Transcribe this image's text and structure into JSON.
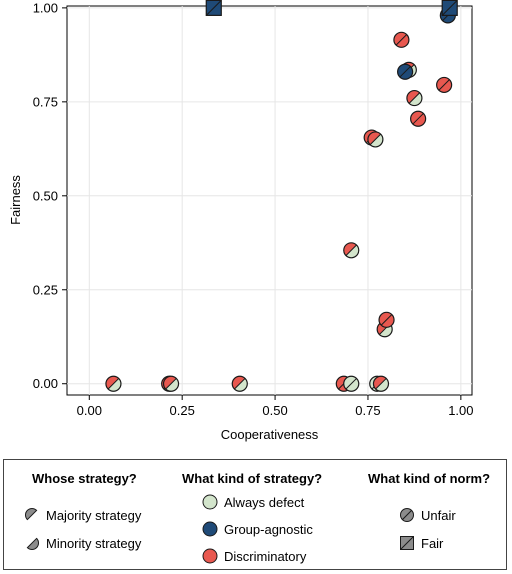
{
  "colors": {
    "always_defect": "#d3e5cc",
    "group_agnostic": "#1f4a77",
    "discriminatory": "#e8584f",
    "grid": "#e6e6e6",
    "outline": "#1a1a1a"
  },
  "chart_data": {
    "type": "scatter",
    "xlabel": "Cooperativeness",
    "ylabel": "Fairness",
    "xlim": [
      -0.06,
      1.03
    ],
    "ylim": [
      -0.03,
      1.005
    ],
    "xticks": [
      "0.00",
      "0.25",
      "0.50",
      "0.75",
      "1.00"
    ],
    "xtick_values": [
      0,
      0.25,
      0.5,
      0.75,
      1.0
    ],
    "yticks": [
      "0.00",
      "0.25",
      "0.50",
      "0.75",
      "1.00"
    ],
    "ytick_values": [
      0,
      0.25,
      0.5,
      0.75,
      1.0
    ],
    "grid": true,
    "points": [
      {
        "x": 0.065,
        "y": 0.0,
        "shape": "circle",
        "majority": "discriminatory",
        "minority": "always_defect"
      },
      {
        "x": 0.215,
        "y": 0.0,
        "shape": "circle",
        "majority": "discriminatory",
        "minority": "always_defect"
      },
      {
        "x": 0.22,
        "y": 0.0,
        "shape": "circle",
        "majority": "discriminatory",
        "minority": "always_defect"
      },
      {
        "x": 0.405,
        "y": 0.0,
        "shape": "circle",
        "majority": "discriminatory",
        "minority": "always_defect"
      },
      {
        "x": 0.685,
        "y": 0.0,
        "shape": "circle",
        "majority": "discriminatory",
        "minority": "discriminatory"
      },
      {
        "x": 0.705,
        "y": 0.0,
        "shape": "circle",
        "majority": "always_defect",
        "minority": "always_defect"
      },
      {
        "x": 0.775,
        "y": 0.0,
        "shape": "circle",
        "majority": "always_defect",
        "minority": "always_defect"
      },
      {
        "x": 0.785,
        "y": 0.0,
        "shape": "circle",
        "majority": "discriminatory",
        "minority": "always_defect"
      },
      {
        "x": 0.705,
        "y": 0.355,
        "shape": "circle",
        "majority": "discriminatory",
        "minority": "always_defect"
      },
      {
        "x": 0.795,
        "y": 0.145,
        "shape": "circle",
        "majority": "discriminatory",
        "minority": "always_defect"
      },
      {
        "x": 0.8,
        "y": 0.17,
        "shape": "circle",
        "majority": "discriminatory",
        "minority": "discriminatory"
      },
      {
        "x": 0.76,
        "y": 0.655,
        "shape": "circle",
        "majority": "discriminatory",
        "minority": "always_defect"
      },
      {
        "x": 0.77,
        "y": 0.65,
        "shape": "circle",
        "majority": "discriminatory",
        "minority": "always_defect"
      },
      {
        "x": 0.84,
        "y": 0.915,
        "shape": "circle",
        "majority": "discriminatory",
        "minority": "discriminatory"
      },
      {
        "x": 0.86,
        "y": 0.835,
        "shape": "circle",
        "majority": "discriminatory",
        "minority": "always_defect"
      },
      {
        "x": 0.85,
        "y": 0.83,
        "shape": "circle",
        "majority": "group_agnostic",
        "minority": "group_agnostic"
      },
      {
        "x": 0.875,
        "y": 0.76,
        "shape": "circle",
        "majority": "discriminatory",
        "minority": "always_defect"
      },
      {
        "x": 0.885,
        "y": 0.705,
        "shape": "circle",
        "majority": "discriminatory",
        "minority": "discriminatory"
      },
      {
        "x": 0.955,
        "y": 0.795,
        "shape": "circle",
        "majority": "discriminatory",
        "minority": "discriminatory"
      },
      {
        "x": 0.965,
        "y": 0.98,
        "shape": "circle",
        "majority": "group_agnostic",
        "minority": "group_agnostic"
      },
      {
        "x": 0.335,
        "y": 1.0,
        "shape": "square",
        "majority": "group_agnostic",
        "minority": "group_agnostic"
      },
      {
        "x": 0.97,
        "y": 1.0,
        "shape": "square",
        "majority": "group_agnostic",
        "minority": "group_agnostic"
      }
    ],
    "legend": {
      "placement": "bottom",
      "whose_title": "Whose strategy?",
      "kind_title": "What kind of strategy?",
      "norm_title": "What kind of norm?",
      "majority_label": "Majority strategy",
      "minority_label": "Minority strategy",
      "always_defect_label": "Always defect",
      "group_agnostic_label": "Group-agnostic",
      "discriminatory_label": "Discriminatory",
      "unfair_label": "Unfair",
      "fair_label": "Fair"
    }
  }
}
